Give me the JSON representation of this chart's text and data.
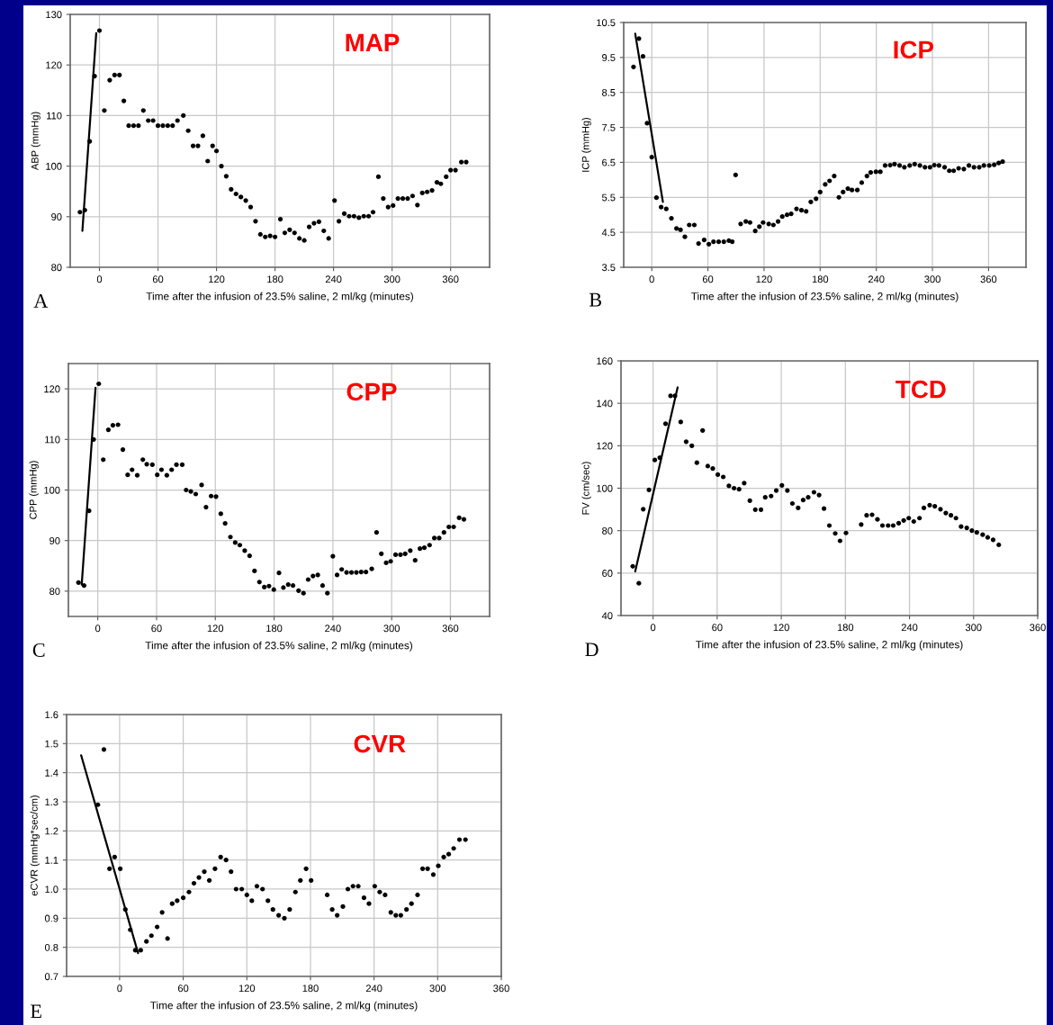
{
  "chart_data": [
    {
      "type": "scatter",
      "title": "MAP",
      "xlabel": "Time after the infusion of 23.5% saline, 2 ml/kg (minutes)",
      "ylabel": "ABP (mmHg)",
      "annotations": [
        "A"
      ],
      "xlim": [
        -30,
        400
      ],
      "xticks": [
        0,
        60,
        120,
        180,
        240,
        300,
        360
      ],
      "ylim": [
        80,
        130
      ],
      "yticks": [
        80,
        90,
        100,
        110,
        120,
        130
      ],
      "grid": true,
      "series": [
        {
          "marker": "circle",
          "color": "#000000",
          "x": [
            -20,
            -15,
            -10,
            -5,
            0,
            5,
            10.5,
            15.5,
            20.5,
            25,
            30,
            35,
            40,
            45,
            50,
            55,
            60,
            65,
            70,
            75,
            80,
            86,
            91,
            96,
            101,
            106,
            111,
            116,
            120,
            125,
            130,
            135,
            140,
            145,
            150,
            155,
            160,
            165,
            170,
            175,
            180,
            185.5,
            190,
            195,
            200,
            205,
            210,
            215,
            220,
            225,
            230,
            235,
            241,
            245.5,
            251,
            256,
            261,
            266,
            271,
            276,
            280.5,
            286,
            291,
            296,
            301,
            306,
            311,
            316,
            321,
            326,
            331,
            336,
            341,
            346,
            350,
            355.5,
            360,
            365,
            371,
            376
          ],
          "values": [
            90.9,
            91.3,
            104.9,
            117.8,
            126.8,
            111,
            117,
            118,
            118,
            112.9,
            108,
            108,
            108,
            111,
            109,
            109,
            108,
            108,
            108,
            108,
            109,
            110,
            107,
            104,
            104,
            106,
            101,
            104,
            103,
            100,
            98,
            95.4,
            94.5,
            93.9,
            93.2,
            91.9,
            89.1,
            86.5,
            86,
            86.2,
            86,
            89.5,
            86.8,
            87.4,
            86.8,
            85.7,
            85.3,
            88,
            88.7,
            89,
            87.2,
            85.7,
            93.2,
            89.1,
            90.6,
            90.1,
            90.1,
            89.8,
            90.1,
            90.1,
            90.9,
            97.9,
            93.6,
            91.9,
            92.2,
            93.6,
            93.6,
            93.6,
            94.1,
            92.3,
            94.7,
            94.9,
            95.2,
            96.8,
            96.5,
            97.9,
            99.2,
            99.2,
            100.8,
            100.8
          ]
        },
        {
          "type": "line",
          "color": "#000000",
          "x": [
            -17.5,
            -3.3
          ],
          "values": [
            87.2,
            126.3
          ]
        }
      ]
    },
    {
      "type": "scatter",
      "title": "ICP",
      "xlabel": "Time after the infusion of 23.5% saline, 2 ml/kg (minutes)",
      "ylabel": "ICP (mmHg)",
      "annotations": [
        "B"
      ],
      "xlim": [
        -30,
        400
      ],
      "xticks": [
        0,
        60,
        120,
        180,
        240,
        300,
        360
      ],
      "ylim": [
        3.5,
        10.5
      ],
      "yticks": [
        3.5,
        4.5,
        5.5,
        6.5,
        7.5,
        8.5,
        9.5,
        10.5
      ],
      "grid": true,
      "series": [
        {
          "marker": "circle",
          "color": "#000000",
          "x": [
            -19.5,
            -13.7,
            -9.4,
            -5,
            0,
            5,
            10,
            15.5,
            21,
            26.4,
            30.7,
            35.4,
            40,
            45.5,
            50,
            56,
            61,
            66,
            71.5,
            77,
            82.4,
            86,
            89.6,
            95,
            100.5,
            105,
            110.6,
            115,
            119,
            125,
            130,
            135,
            139.5,
            144.6,
            149,
            154.7,
            160,
            165,
            170,
            175.6,
            180,
            185.4,
            190,
            195,
            200,
            204.5,
            209.6,
            214,
            219.7,
            224.4,
            230,
            234,
            239.6,
            244.3,
            249.4,
            254.8,
            259.5,
            264.9,
            270,
            275.7,
            281,
            286.6,
            292,
            297.4,
            302,
            307,
            313,
            318,
            322.7,
            328,
            333.6,
            339,
            344.4,
            350,
            355,
            360.7,
            366,
            370.8,
            375
          ],
          "values": [
            9.23,
            10.04,
            9.53,
            7.62,
            6.65,
            5.49,
            5.22,
            5.17,
            4.9,
            4.61,
            4.57,
            4.37,
            4.71,
            4.71,
            4.18,
            4.28,
            4.16,
            4.23,
            4.23,
            4.23,
            4.26,
            4.23,
            6.14,
            4.74,
            4.81,
            4.78,
            4.54,
            4.66,
            4.78,
            4.74,
            4.71,
            4.81,
            4.95,
            5.0,
            5.03,
            5.17,
            5.13,
            5.1,
            5.37,
            5.46,
            5.65,
            5.87,
            5.97,
            6.11,
            5.5,
            5.65,
            5.75,
            5.71,
            5.71,
            5.92,
            6.11,
            6.21,
            6.23,
            6.23,
            6.41,
            6.42,
            6.45,
            6.41,
            6.36,
            6.41,
            6.45,
            6.41,
            6.36,
            6.36,
            6.42,
            6.41,
            6.36,
            6.26,
            6.26,
            6.33,
            6.31,
            6.41,
            6.36,
            6.36,
            6.41,
            6.41,
            6.43,
            6.48,
            6.52
          ]
        },
        {
          "type": "line",
          "color": "#000000",
          "x": [
            -17.7,
            11.9
          ],
          "values": [
            10.18,
            5.37
          ]
        }
      ]
    },
    {
      "type": "scatter",
      "title": "CPP",
      "xlabel": "Time after the infusion of 23.5% saline, 2 ml/kg (minutes)",
      "ylabel": "CPP (mmHg)",
      "annotations": [
        "C"
      ],
      "xlim": [
        -30,
        400
      ],
      "xticks": [
        0,
        60,
        120,
        180,
        240,
        300,
        360
      ],
      "ylim": [
        75,
        125
      ],
      "yticks": [
        80,
        90,
        100,
        110,
        120
      ],
      "grid": true,
      "series": [
        {
          "marker": "circle",
          "color": "#000000",
          "x": [
            -19.7,
            -14,
            -8.9,
            -4.3,
            1,
            5.6,
            10.8,
            15.4,
            20.7,
            25.6,
            30.5,
            35,
            40.3,
            46,
            50,
            55.7,
            60.7,
            65,
            70.5,
            75.4,
            80.3,
            86.2,
            90.2,
            95,
            100,
            106,
            110.5,
            115.7,
            120.7,
            125.6,
            130,
            135.4,
            140.3,
            145,
            150,
            155,
            160,
            165,
            170,
            174.8,
            179.7,
            185,
            189.5,
            194.4,
            199.3,
            205,
            210,
            214.8,
            219.7,
            224.6,
            229.5,
            234.4,
            240,
            244.3,
            249,
            254,
            259,
            264,
            268.9,
            273.8,
            279.7,
            284.6,
            289.5,
            294.4,
            299,
            304,
            309,
            313.8,
            319,
            324,
            328.9,
            333.4,
            338.7,
            343.6,
            348.5,
            353.4,
            358.4,
            363.3,
            368.9,
            373.8
          ],
          "values": [
            81.7,
            81.1,
            95.9,
            110,
            121,
            106,
            111.9,
            112.8,
            112.9,
            108,
            103,
            104,
            102.9,
            106,
            105.1,
            105,
            103,
            104,
            102.9,
            104,
            105,
            105,
            100,
            99.7,
            99.2,
            101,
            96.6,
            98.8,
            98.7,
            95.3,
            93.4,
            90.7,
            89.6,
            89.1,
            88,
            87,
            84,
            81.8,
            80.8,
            81,
            80.3,
            83.6,
            80.7,
            81.3,
            81.1,
            80.1,
            79.6,
            82.3,
            83,
            83.2,
            81.1,
            79.6,
            86.9,
            83.2,
            84.3,
            83.7,
            83.7,
            83.7,
            83.8,
            83.8,
            84.4,
            91.6,
            87.4,
            85.6,
            85.9,
            87.2,
            87.2,
            87.4,
            88,
            86.1,
            88.4,
            88.6,
            89.1,
            90.5,
            90.5,
            91.6,
            92.7,
            92.7,
            94.5,
            94.2
          ]
        },
        {
          "type": "line",
          "color": "#000000",
          "x": [
            -16.4,
            -2.3
          ],
          "values": [
            81.3,
            120.2
          ]
        }
      ]
    },
    {
      "type": "scatter",
      "title": "TCD",
      "xlabel": "Time after the infusion of 23.5% saline, 2 ml/kg (minutes)",
      "ylabel": "FV (cm/sec)",
      "annotations": [
        "D"
      ],
      "xlim": [
        -30,
        360
      ],
      "xticks": [
        0,
        60,
        120,
        180,
        240,
        300,
        360
      ],
      "ylim": [
        40,
        160
      ],
      "yticks": [
        40,
        60,
        80,
        100,
        120,
        140,
        160
      ],
      "grid": true,
      "series": [
        {
          "marker": "circle",
          "color": "#000000",
          "x": [
            -19,
            -13.3,
            -9.2,
            -3.8,
            1.6,
            6.3,
            11.7,
            16.4,
            20.5,
            25.9,
            31,
            36.3,
            41,
            46.4,
            51.2,
            55.9,
            60.6,
            65.7,
            71,
            75.8,
            80.5,
            85.3,
            90.6,
            95.7,
            101,
            105,
            110.5,
            115.3,
            120.6,
            125.7,
            130.4,
            135.8,
            140.5,
            145.2,
            150.6,
            155.4,
            160,
            165,
            170.5,
            175,
            180.6,
            194.8,
            199.9,
            205,
            210,
            214.7,
            220,
            224.8,
            229.9,
            234.6,
            239.3,
            244,
            249.4,
            253.5,
            258.9,
            263.7,
            269,
            274,
            278.8,
            283.5,
            288.3,
            293.6,
            298.4,
            303,
            308.5,
            313.2,
            318.3,
            323.6
          ],
          "values": [
            63.2,
            55.2,
            90.1,
            99.2,
            113.3,
            114.4,
            130.4,
            143.5,
            143.5,
            131.2,
            121.9,
            120,
            112,
            127.2,
            110.4,
            109.3,
            106.4,
            105.3,
            101.1,
            100,
            99.5,
            102.4,
            94.1,
            89.9,
            89.9,
            95.7,
            96.3,
            98.9,
            101.3,
            98.9,
            92.8,
            90.7,
            94.4,
            95.7,
            98.1,
            96.8,
            90.4,
            82.4,
            78.7,
            75.2,
            78.9,
            82.9,
            87.2,
            87.5,
            85.3,
            82.4,
            82.4,
            82.4,
            83.5,
            84.8,
            85.9,
            84.3,
            85.9,
            90.7,
            92,
            91.5,
            90.1,
            88.3,
            87.2,
            85.9,
            81.9,
            81.3,
            80,
            79.2,
            78.1,
            76.8,
            75.7,
            73.3
          ]
        },
        {
          "type": "line",
          "color": "#000000",
          "x": [
            -16.7,
            23
          ],
          "values": [
            60.8,
            147.5
          ]
        }
      ]
    },
    {
      "type": "scatter",
      "title": "CVR",
      "xlabel": "Time after the infusion of 23.5% saline, 2 ml/kg (minutes)",
      "ylabel": "eCVR (mmHg*sec/cm)",
      "annotations": [
        "E"
      ],
      "xlim": [
        -50,
        360
      ],
      "xticks": [
        0,
        60,
        120,
        180,
        240,
        300,
        360
      ],
      "ylim": [
        0.7,
        1.6
      ],
      "yticks": [
        0.7,
        0.8,
        0.9,
        {
          "value": 1.0,
          "label": "1.0"
        },
        1.1,
        1.2,
        1.3,
        1.4,
        1.5,
        1.6
      ],
      "grid": true,
      "series": [
        {
          "marker": "circle",
          "color": "#000000",
          "x": [
            -20.5,
            -14.8,
            -9.5,
            -4.7,
            0.6,
            5.4,
            10.1,
            14.8,
            19.9,
            25.3,
            30,
            35.4,
            40.1,
            45.2,
            49.6,
            54.3,
            60,
            65.4,
            70.1,
            74.8,
            79.9,
            84.6,
            90,
            95.3,
            100.4,
            105.1,
            109.9,
            115.2,
            120,
            124.7,
            129.5,
            134.8,
            139.9,
            144.6,
            150,
            155.4,
            160.4,
            165.8,
            170.5,
            175.9,
            180.6,
            195.8,
            200.5,
            205.2,
            210.6,
            215.3,
            220.1,
            225.1,
            230.5,
            235.2,
            240.6,
            245.3,
            250.4,
            255.8,
            260.5,
            265.2,
            270.6,
            275.3,
            281,
            285.8,
            290.5,
            295.9,
            300.6,
            305.7,
            310.4,
            315.1,
            320.5,
            326.2
          ],
          "values": [
            1.29,
            1.48,
            1.07,
            1.11,
            1.07,
            0.93,
            0.86,
            0.79,
            0.79,
            0.82,
            0.84,
            0.87,
            0.92,
            0.83,
            0.95,
            0.96,
            0.97,
            0.99,
            1.02,
            1.04,
            1.06,
            1.03,
            1.07,
            1.11,
            1.1,
            1.06,
            1.0,
            1.0,
            0.98,
            0.96,
            1.01,
            1.0,
            0.96,
            0.93,
            0.91,
            0.9,
            0.93,
            0.99,
            1.03,
            1.07,
            1.03,
            0.98,
            0.93,
            0.91,
            0.94,
            1.0,
            1.01,
            1.01,
            0.97,
            0.95,
            1.01,
            0.99,
            0.98,
            0.92,
            0.91,
            0.91,
            0.93,
            0.95,
            0.98,
            1.07,
            1.07,
            1.05,
            1.08,
            1.11,
            1.12,
            1.14,
            1.17,
            1.17
          ]
        },
        {
          "type": "line",
          "color": "#000000",
          "x": [
            -36.3,
            17.4
          ],
          "values": [
            1.46,
            0.78
          ]
        }
      ]
    }
  ]
}
